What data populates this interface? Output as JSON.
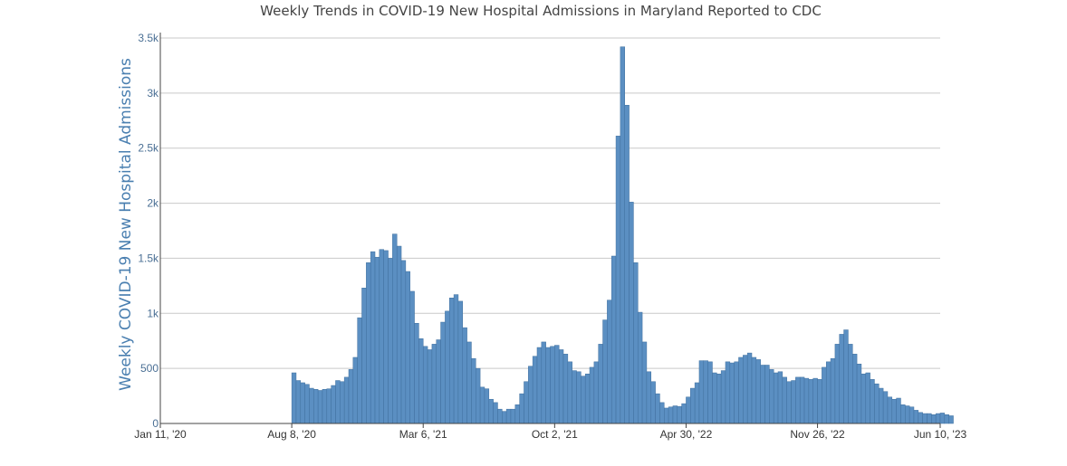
{
  "chart_data": {
    "type": "bar",
    "title": "Weekly Trends in COVID-19 New Hospital Admissions in Maryland Reported to CDC",
    "xlabel": "",
    "ylabel": "Weekly COVID-19 New Hospital Admissions",
    "x_start": "2020-01-11",
    "x_end": "2023-06-10",
    "bar_color": "#5b8fc2",
    "bar_edge": "#3f6f9e",
    "grid": true,
    "ylim": [
      0,
      3500
    ],
    "yticks": [
      {
        "value": 0,
        "label": "0"
      },
      {
        "value": 500,
        "label": "500"
      },
      {
        "value": 1000,
        "label": "1k"
      },
      {
        "value": 1500,
        "label": "1.5k"
      },
      {
        "value": 2000,
        "label": "2k"
      },
      {
        "value": 2500,
        "label": "2.5k"
      },
      {
        "value": 3000,
        "label": "3k"
      },
      {
        "value": 3500,
        "label": "3.5k"
      }
    ],
    "xticks": [
      {
        "date": "2020-01-11",
        "label": "Jan 11, '20"
      },
      {
        "date": "2020-08-08",
        "label": "Aug 8, '20"
      },
      {
        "date": "2021-03-06",
        "label": "Mar 6, '21"
      },
      {
        "date": "2021-10-02",
        "label": "Oct 2, '21"
      },
      {
        "date": "2022-04-30",
        "label": "Apr 30, '22"
      },
      {
        "date": "2022-11-26",
        "label": "Nov 26, '22"
      },
      {
        "date": "2023-06-10",
        "label": "Jun 10, '23"
      }
    ],
    "first_bar_week": "2020-08-08",
    "values": [
      460,
      390,
      370,
      355,
      320,
      310,
      300,
      310,
      315,
      345,
      390,
      380,
      420,
      490,
      600,
      960,
      1230,
      1460,
      1560,
      1510,
      1580,
      1570,
      1500,
      1720,
      1610,
      1480,
      1380,
      1200,
      910,
      770,
      700,
      670,
      720,
      760,
      920,
      1020,
      1140,
      1170,
      1110,
      870,
      740,
      590,
      500,
      330,
      315,
      220,
      190,
      130,
      110,
      130,
      130,
      170,
      270,
      380,
      520,
      610,
      690,
      740,
      690,
      700,
      710,
      670,
      630,
      560,
      480,
      470,
      430,
      450,
      510,
      560,
      720,
      940,
      1120,
      1520,
      2610,
      3420,
      2890,
      2010,
      1460,
      1010,
      740,
      470,
      380,
      270,
      190,
      140,
      150,
      160,
      155,
      180,
      240,
      320,
      370,
      570,
      570,
      560,
      460,
      450,
      480,
      560,
      550,
      560,
      600,
      620,
      640,
      600,
      580,
      530,
      530,
      490,
      460,
      470,
      420,
      380,
      390,
      420,
      420,
      410,
      400,
      410,
      400,
      510,
      560,
      590,
      720,
      810,
      850,
      720,
      630,
      540,
      450,
      460,
      400,
      360,
      320,
      290,
      240,
      220,
      230,
      170,
      160,
      150,
      120,
      100,
      90,
      90,
      80,
      90,
      95,
      80,
      70
    ]
  }
}
